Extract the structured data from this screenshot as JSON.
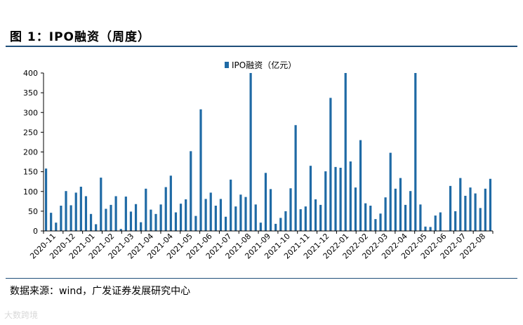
{
  "figure": {
    "title": "图 1：IPO融资（周度）",
    "source": "数据来源：wind，广发证券发展研究中心",
    "watermark": "大数跨境"
  },
  "colors": {
    "bar": "#1f6aa5",
    "rule": "#1f4e79",
    "axis": "#000000"
  },
  "chart_data": {
    "type": "bar",
    "legend": {
      "position": "top-center"
    },
    "grid": false,
    "ylim": [
      0,
      400
    ],
    "yticks": [
      0,
      50,
      100,
      150,
      200,
      250,
      300,
      350,
      400
    ],
    "series": [
      {
        "name": "IPO融资（亿元）",
        "values": [
          158,
          46,
          21,
          64,
          101,
          65,
          97,
          112,
          88,
          43,
          17,
          135,
          56,
          66,
          88,
          5,
          87,
          49,
          68,
          22,
          107,
          54,
          43,
          67,
          111,
          140,
          47,
          69,
          80,
          202,
          38,
          308,
          81,
          97,
          64,
          81,
          36,
          130,
          62,
          92,
          86,
          400,
          67,
          21,
          147,
          106,
          18,
          33,
          50,
          108,
          268,
          55,
          62,
          165,
          80,
          66,
          151,
          337,
          162,
          160,
          400,
          176,
          110,
          230,
          70,
          64,
          30,
          44,
          85,
          198,
          107,
          134,
          66,
          101,
          400,
          67,
          11,
          10,
          39,
          47,
          0,
          114,
          50,
          134,
          89,
          110,
          95,
          58,
          107,
          132
        ]
      }
    ],
    "x_tick_labels": [
      "2020-11",
      "2020-12",
      "2021-01",
      "2021-02",
      "2021-03",
      "2021-04",
      "2021-04",
      "2021-05",
      "2021-06",
      "2021-07",
      "2021-08",
      "2021-09",
      "2021-10",
      "2021-11",
      "2021-12",
      "2022-01",
      "2022-02",
      "2022-03",
      "2022-04",
      "2022-05",
      "2022-06",
      "2022-07",
      "2022-08"
    ]
  }
}
